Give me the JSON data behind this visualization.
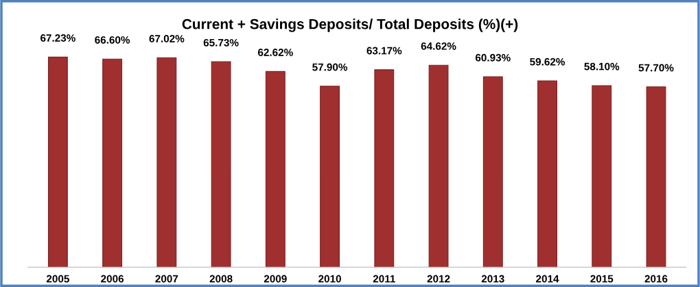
{
  "chart_data": {
    "type": "bar",
    "title": "Current + Savings Deposits/ Total Deposits (%)(+)",
    "categories": [
      "2005",
      "2006",
      "2007",
      "2008",
      "2009",
      "2010",
      "2011",
      "2012",
      "2013",
      "2014",
      "2015",
      "2016"
    ],
    "values": [
      67.23,
      66.6,
      67.02,
      65.73,
      62.62,
      57.9,
      63.17,
      64.62,
      60.93,
      59.62,
      58.1,
      57.7
    ],
    "value_labels": [
      "67.23%",
      "66.60%",
      "67.02%",
      "65.73%",
      "62.62%",
      "57.90%",
      "63.17%",
      "64.62%",
      "60.93%",
      "59.62%",
      "58.10%",
      "57.70%"
    ],
    "color": "#a0302f",
    "tick_labels": "x",
    "grid": false,
    "legend": false
  }
}
